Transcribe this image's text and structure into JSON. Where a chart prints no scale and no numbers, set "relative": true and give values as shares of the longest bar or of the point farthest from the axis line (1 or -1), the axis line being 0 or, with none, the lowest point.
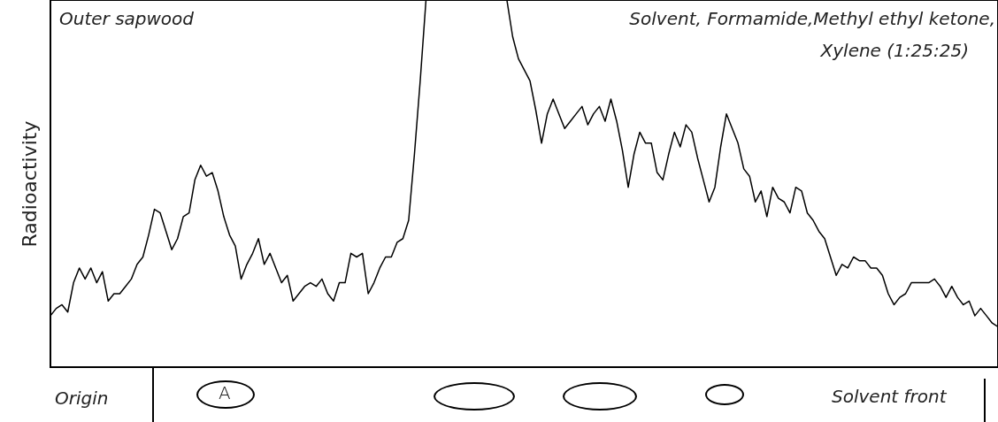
{
  "chart_data": {
    "type": "line",
    "relative": true,
    "ylabel": "Radioactivity",
    "annotations": [
      "Outer sapwood",
      "Solvent, Formamide,Methyl ethyl ketone,",
      "Xylene (1:25:25)",
      "Origin",
      "A",
      "Solvent front"
    ],
    "categories": [
      null,
      null,
      null,
      null,
      null,
      null,
      null,
      null,
      null,
      null,
      null,
      null,
      null,
      null,
      null,
      null,
      null,
      null,
      null,
      null,
      null,
      null,
      null,
      null,
      null,
      null,
      null,
      null,
      null,
      null,
      null,
      null,
      null,
      null,
      null,
      null,
      null,
      null,
      null,
      null,
      null,
      null,
      null,
      null,
      null,
      null,
      null,
      null,
      null,
      null,
      null,
      null,
      null,
      null,
      null,
      null,
      null,
      null,
      null,
      null,
      null,
      null,
      null,
      null,
      null,
      null,
      null,
      null,
      null,
      null,
      null,
      null,
      null,
      null,
      null,
      null,
      null,
      null,
      null,
      null,
      null,
      null,
      null,
      null,
      null,
      null,
      null,
      null,
      null,
      null,
      null,
      null,
      null,
      null,
      null,
      null,
      null,
      null,
      null,
      null,
      null,
      null,
      null,
      null,
      null,
      null,
      null,
      null,
      null,
      null,
      null,
      null,
      null,
      null,
      null,
      null,
      null,
      null,
      null,
      null,
      null,
      null,
      null,
      null,
      null,
      null,
      null,
      null,
      null,
      null,
      null,
      null,
      null,
      null,
      null,
      null,
      null,
      null,
      null,
      null,
      null,
      null,
      null,
      null,
      null,
      null,
      null,
      null,
      null,
      null,
      null,
      null,
      null,
      null,
      null,
      null,
      null,
      null,
      null,
      null,
      null,
      null,
      null,
      null,
      null
    ],
    "series": [
      {
        "color": "#000000",
        "values": [
          0.14,
          0.16,
          0.17,
          0.15,
          0.23,
          0.27,
          0.24,
          0.27,
          0.23,
          0.26,
          0.18,
          0.2,
          0.2,
          0.22,
          0.24,
          0.28,
          0.3,
          0.36,
          0.43,
          0.42,
          0.37,
          0.32,
          0.35,
          0.41,
          0.42,
          0.51,
          0.55,
          0.52,
          0.53,
          0.48,
          0.41,
          0.36,
          0.33,
          0.24,
          0.28,
          0.31,
          0.35,
          0.28,
          0.31,
          0.27,
          0.23,
          0.25,
          0.18,
          0.2,
          0.22,
          0.23,
          0.22,
          0.24,
          0.2,
          0.18,
          0.23,
          0.23,
          0.31,
          0.3,
          0.31,
          0.2,
          0.23,
          0.27,
          0.3,
          0.3,
          0.34,
          0.35,
          0.4,
          0.58,
          0.78,
          1,
          1,
          1,
          1,
          1,
          1,
          1,
          1,
          1,
          1,
          1,
          1,
          1,
          1,
          1,
          0.9,
          0.84,
          0.81,
          0.78,
          0.7,
          0.61,
          0.69,
          0.73,
          0.69,
          0.65,
          0.67,
          0.69,
          0.71,
          0.66,
          0.69,
          0.71,
          0.67,
          0.73,
          0.67,
          0.59,
          0.49,
          0.58,
          0.64,
          0.61,
          0.61,
          0.53,
          0.51,
          0.58,
          0.64,
          0.6,
          0.66,
          0.64,
          0.57,
          0.51,
          0.45,
          0.49,
          0.6,
          0.69,
          0.65,
          0.61,
          0.54,
          0.52,
          0.45,
          0.48,
          0.41,
          0.49,
          0.46,
          0.45,
          0.42,
          0.49,
          0.48,
          0.42,
          0.4,
          0.37,
          0.35,
          0.3,
          0.25,
          0.28,
          0.27,
          0.3,
          0.29,
          0.29,
          0.27,
          0.27,
          0.25,
          0.2,
          0.17,
          0.19,
          0.2,
          0.23,
          0.23,
          0.23,
          0.23,
          0.24,
          0.22,
          0.19,
          0.22,
          0.19,
          0.17,
          0.18,
          0.14,
          0.16,
          0.14,
          0.12,
          0.11
        ]
      }
    ],
    "grid": false,
    "tick_labels": false
  }
}
